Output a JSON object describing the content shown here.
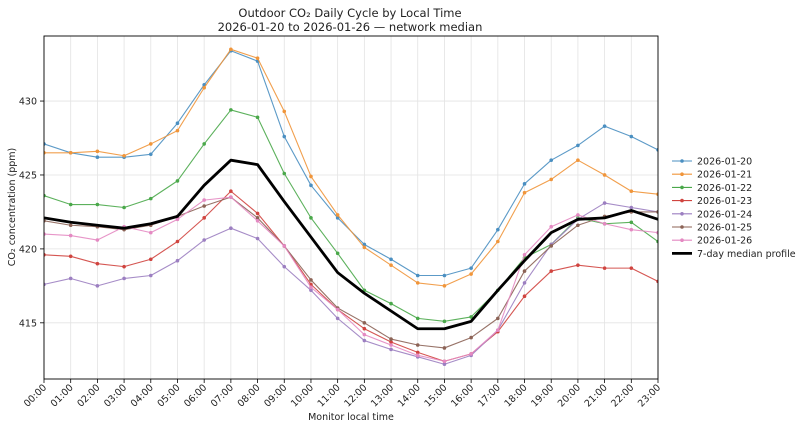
{
  "chart_data": {
    "type": "line",
    "title": "Outdoor CO₂ Daily Cycle by Local Time",
    "subtitle": "2026-01-20 to 2026-01-26 — network median",
    "xlabel": "Monitor local time",
    "ylabel": "CO₂ concentration (ppm)",
    "x": [
      "00:00",
      "01:00",
      "02:00",
      "03:00",
      "04:00",
      "05:00",
      "06:00",
      "07:00",
      "08:00",
      "09:00",
      "10:00",
      "11:00",
      "12:00",
      "13:00",
      "14:00",
      "15:00",
      "16:00",
      "17:00",
      "18:00",
      "19:00",
      "20:00",
      "21:00",
      "22:00",
      "23:00"
    ],
    "ylim": [
      411.2,
      434.4
    ],
    "yticks": [
      415,
      420,
      425,
      430
    ],
    "grid": true,
    "legend_position": "right",
    "series": [
      {
        "name": "2026-01-20",
        "color": "#4a8fc1",
        "values": [
          427.1,
          426.5,
          426.2,
          426.2,
          426.4,
          428.5,
          431.1,
          433.4,
          432.7,
          427.6,
          424.3,
          422.1,
          420.3,
          419.3,
          418.2,
          418.2,
          418.7,
          421.3,
          424.4,
          426.0,
          427.0,
          428.3,
          427.6,
          426.7
        ]
      },
      {
        "name": "2026-01-21",
        "color": "#f0953a",
        "values": [
          426.5,
          426.5,
          426.6,
          426.3,
          427.1,
          428.0,
          430.9,
          433.5,
          432.9,
          429.3,
          424.9,
          422.3,
          420.1,
          418.9,
          417.7,
          417.5,
          418.3,
          420.5,
          423.8,
          424.7,
          426.0,
          425.0,
          423.9,
          423.7
        ]
      },
      {
        "name": "2026-01-22",
        "color": "#4aa84a",
        "values": [
          423.6,
          423.0,
          423.0,
          422.8,
          423.4,
          424.6,
          427.1,
          429.4,
          428.9,
          425.1,
          422.1,
          419.7,
          417.2,
          416.3,
          415.3,
          415.1,
          415.4,
          417.2,
          419.4,
          420.3,
          422.1,
          421.7,
          421.8,
          420.5
        ]
      },
      {
        "name": "2026-01-23",
        "color": "#d0443f",
        "values": [
          419.6,
          419.5,
          419.0,
          418.8,
          419.3,
          420.5,
          422.1,
          423.9,
          422.4,
          420.2,
          417.6,
          415.9,
          414.6,
          413.7,
          413.0,
          412.4,
          412.9,
          414.4,
          416.8,
          418.5,
          418.9,
          418.7,
          418.7,
          417.8
        ]
      },
      {
        "name": "2026-01-24",
        "color": "#9c7fc1",
        "values": [
          417.6,
          418.0,
          417.5,
          418.0,
          418.2,
          419.2,
          420.6,
          421.4,
          420.7,
          418.8,
          417.2,
          415.3,
          413.8,
          413.2,
          412.7,
          412.2,
          412.8,
          414.5,
          417.7,
          420.3,
          422.0,
          423.1,
          422.8,
          422.5
        ]
      },
      {
        "name": "2026-01-25",
        "color": "#8c6356",
        "values": [
          421.9,
          421.6,
          421.5,
          421.3,
          421.6,
          422.2,
          422.9,
          423.5,
          422.1,
          420.2,
          417.9,
          416.0,
          415.0,
          413.9,
          413.5,
          413.3,
          414.0,
          415.3,
          418.5,
          420.2,
          421.6,
          422.2,
          422.5,
          422.5
        ]
      },
      {
        "name": "2026-01-26",
        "color": "#e489c2",
        "values": [
          421.0,
          420.9,
          420.6,
          421.5,
          421.1,
          422.0,
          423.3,
          423.5,
          421.9,
          420.2,
          417.4,
          415.9,
          414.2,
          413.5,
          412.8,
          412.4,
          412.9,
          414.5,
          419.6,
          421.5,
          422.3,
          421.7,
          421.3,
          421.1
        ]
      },
      {
        "name": "7-day median profile",
        "color": "#000000",
        "values": [
          422.1,
          421.8,
          421.6,
          421.4,
          421.7,
          422.2,
          424.3,
          426.0,
          425.7,
          423.2,
          420.8,
          418.4,
          417.0,
          415.8,
          414.6,
          414.6,
          415.1,
          417.2,
          419.2,
          421.1,
          422.0,
          422.1,
          422.6,
          422.0
        ]
      }
    ]
  }
}
